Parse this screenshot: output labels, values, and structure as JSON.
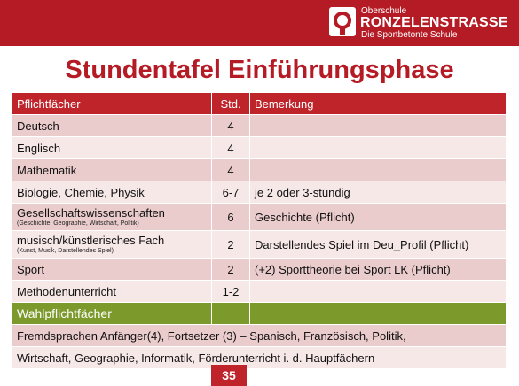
{
  "logo": {
    "line1": "Oberschule",
    "line2": "RONZELENSTRASSE",
    "line3": "Die Sportbetonte Schule"
  },
  "title": "Stundentafel Einführungsphase",
  "table": {
    "headers": [
      "Pflichtfächer",
      "Std.",
      "Bemerkung"
    ],
    "rows": [
      {
        "subject": "Deutsch",
        "detail": "",
        "hours": "4",
        "note": ""
      },
      {
        "subject": "Englisch",
        "detail": "",
        "hours": "4",
        "note": ""
      },
      {
        "subject": "Mathematik",
        "detail": "",
        "hours": "4",
        "note": ""
      },
      {
        "subject": "Biologie, Chemie, Physik",
        "detail": "",
        "hours": "6-7",
        "note": "je 2 oder 3-stündig"
      },
      {
        "subject": "Gesellschaftswissenschaften",
        "detail": "(Geschichte, Geographie, Wirtschaft, Politik)",
        "hours": "6",
        "note": "Geschichte (Pflicht)"
      },
      {
        "subject": "musisch/künstlerisches Fach",
        "detail": "(Kunst, Musik, Darstellendes Spiel)",
        "hours": "2",
        "note": "Darstellendes Spiel im Deu_Profil (Pflicht)"
      },
      {
        "subject": "Sport",
        "detail": "",
        "hours": "2",
        "note": "(+2) Sporttheorie bei  Sport LK (Pflicht)"
      },
      {
        "subject": "Methodenunterricht",
        "detail": "",
        "hours": "1-2",
        "note": ""
      }
    ],
    "elective_header": "Wahlpflichtfächer",
    "elective_lines": [
      "Fremdsprachen  Anfänger(4), Fortsetzer (3) – Spanisch, Französisch, Politik,",
      "Wirtschaft, Geographie, Informatik, Förderunterricht i. d. Hauptfächern"
    ]
  },
  "page_number": "35",
  "colors": {
    "brand_red": "#b51b24",
    "header_red": "#c0242b",
    "elective_green": "#7c9a2c",
    "row_odd": "#ebcccc",
    "row_even": "#f7e8e8"
  }
}
